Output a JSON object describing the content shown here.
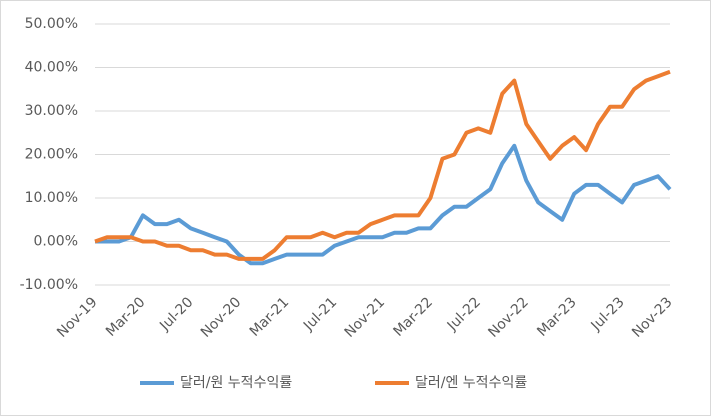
{
  "chart_data": {
    "type": "line",
    "categories": [
      "Nov-19",
      null,
      null,
      null,
      "Mar-20",
      null,
      null,
      null,
      "Jul-20",
      null,
      null,
      null,
      "Nov-20",
      null,
      null,
      null,
      "Mar-21",
      null,
      null,
      null,
      "Jul-21",
      null,
      null,
      null,
      "Nov-21",
      null,
      null,
      null,
      "Mar-22",
      null,
      null,
      null,
      "Jul-22",
      null,
      null,
      null,
      "Nov-22",
      null,
      null,
      null,
      "Mar-23",
      null,
      null,
      null,
      "Jul-23",
      null,
      null,
      null,
      "Nov-23"
    ],
    "series": [
      {
        "name": "달러/원 누적수익률",
        "color": "#5b9bd5",
        "values": [
          0,
          0,
          0,
          1,
          6,
          4,
          4,
          5,
          3,
          2,
          1,
          0,
          -3,
          -5,
          -5,
          -4,
          -3,
          -3,
          -3,
          -3,
          -1,
          0,
          1,
          1,
          1,
          2,
          2,
          3,
          3,
          6,
          8,
          8,
          10,
          12,
          18,
          22,
          14,
          9,
          7,
          5,
          11,
          13,
          13,
          11,
          9,
          13,
          14,
          15,
          12
        ]
      },
      {
        "name": "달러/엔 누적수익률",
        "color": "#ed7d31",
        "values": [
          0,
          1,
          1,
          1,
          0,
          0,
          -1,
          -1,
          -2,
          -2,
          -3,
          -3,
          -4,
          -4,
          -4,
          -2,
          1,
          1,
          1,
          2,
          1,
          2,
          2,
          4,
          5,
          6,
          6,
          6,
          10,
          19,
          20,
          25,
          26,
          25,
          34,
          37,
          27,
          23,
          19,
          22,
          24,
          21,
          27,
          31,
          31,
          35,
          37,
          38,
          39
        ]
      }
    ],
    "ylim": [
      -10,
      50
    ],
    "yticks": [
      {
        "value": -10,
        "label": "-10.00%"
      },
      {
        "value": 0,
        "label": "0.00%"
      },
      {
        "value": 10,
        "label": "10.00%"
      },
      {
        "value": 20,
        "label": "20.00%"
      },
      {
        "value": 30,
        "label": "30.00%"
      },
      {
        "value": 40,
        "label": "40.00%"
      },
      {
        "value": 50,
        "label": "50.00%"
      }
    ],
    "grid": true,
    "legend": "bottom"
  }
}
